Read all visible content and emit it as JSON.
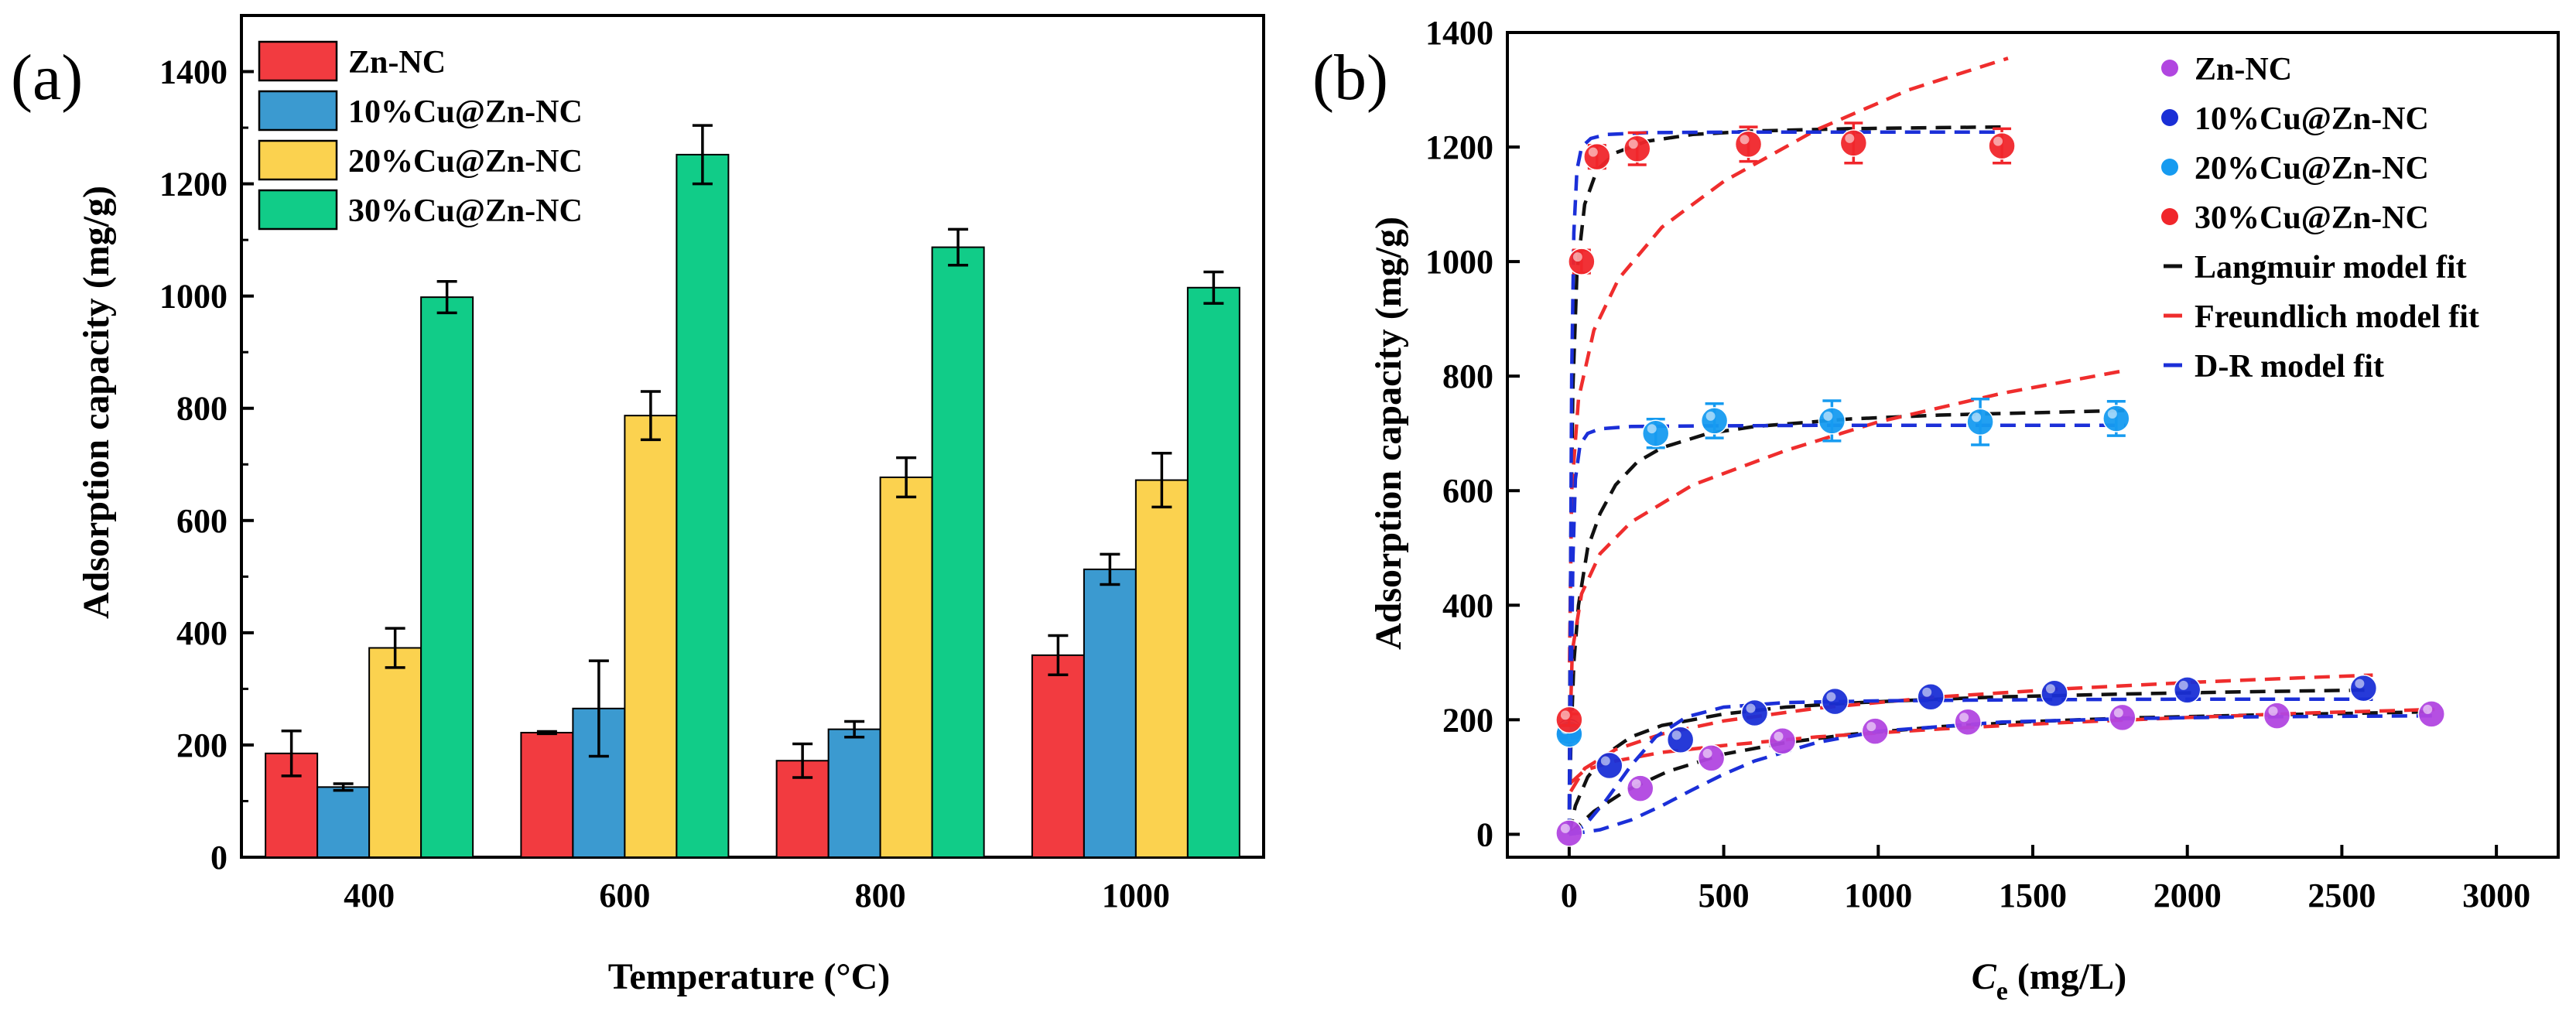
{
  "chart_data": [
    {
      "type": "bar",
      "panel_label": "(a)",
      "title": "",
      "xlabel": "Temperature  (°C)",
      "ylabel": "Adsorption capacity (mg/g)",
      "categories": [
        "400",
        "600",
        "800",
        "1000"
      ],
      "ylim": [
        0,
        1500
      ],
      "yticks": [
        "0",
        "200",
        "400",
        "600",
        "800",
        "1000",
        "1200",
        "1400"
      ],
      "legend_position": "top-left",
      "series": [
        {
          "name": "Zn-NC",
          "color": "#f23b40",
          "values": [
            185,
            222,
            172,
            360
          ],
          "errors": [
            40,
            2,
            30,
            35
          ]
        },
        {
          "name": "10%Cu@Zn-NC",
          "color": "#3b9ad0",
          "values": [
            125,
            265,
            228,
            513
          ],
          "errors": [
            6,
            85,
            14,
            27
          ]
        },
        {
          "name": "20%Cu@Zn-NC",
          "color": "#fbd24f",
          "values": [
            373,
            787,
            677,
            672
          ],
          "errors": [
            35,
            43,
            35,
            48
          ]
        },
        {
          "name": "30%Cu@Zn-NC",
          "color": "#11cc88",
          "values": [
            998,
            1252,
            1087,
            1015
          ],
          "errors": [
            28,
            52,
            32,
            28
          ]
        }
      ]
    },
    {
      "type": "scatter",
      "panel_label": "(b)",
      "title": "",
      "xlabel_main": "C",
      "xlabel_sub": "e",
      "xlabel_rest": " (mg/L)",
      "ylabel": "Adsorption capacity (mg/g)",
      "xlim": [
        -200,
        3200
      ],
      "ylim": [
        -40,
        1400
      ],
      "xticks": [
        "0",
        "500",
        "1000",
        "1500",
        "2000",
        "2500",
        "3000"
      ],
      "yticks": [
        "0",
        "200",
        "400",
        "600",
        "800",
        "1000",
        "1200",
        "1400"
      ],
      "legend_position": "top-right",
      "series": [
        {
          "name": "Zn-NC",
          "color": "#b146e0",
          "x": [
            0,
            230,
            460,
            690,
            990,
            1290,
            1790,
            2290,
            2790
          ],
          "y": [
            2,
            80,
            133,
            163,
            180,
            196,
            204,
            207,
            210
          ],
          "err": [
            0,
            0,
            0,
            0,
            0,
            0,
            0,
            0,
            0
          ]
        },
        {
          "name": "10%Cu@Zn-NC",
          "color": "#1a2fd6",
          "x": [
            0,
            130,
            360,
            600,
            860,
            1170,
            1570,
            2000,
            2570
          ],
          "y": [
            180,
            120,
            165,
            212,
            232,
            240,
            246,
            252,
            255
          ],
          "err": [
            0,
            0,
            0,
            0,
            0,
            0,
            0,
            0,
            0
          ]
        },
        {
          "name": "20%Cu@Zn-NC",
          "color": "#169bf0",
          "x": [
            0,
            280,
            470,
            850,
            1330,
            1770
          ],
          "y": [
            175,
            700,
            722,
            722,
            720,
            726
          ],
          "err": [
            12,
            25,
            30,
            35,
            40,
            30
          ]
        },
        {
          "name": "30%Cu@Zn-NC",
          "color": "#f0262b",
          "x": [
            0,
            40,
            90,
            220,
            580,
            920,
            1400
          ],
          "y": [
            200,
            1000,
            1183,
            1197,
            1205,
            1207,
            1202
          ],
          "err": [
            10,
            20,
            20,
            28,
            30,
            35,
            30
          ]
        }
      ],
      "fits": [
        {
          "name": "Langmuir model fit",
          "color": "#111111",
          "curves": [
            {
              "x": [
                0,
                80,
                180,
                320,
                500,
                700,
                900,
                1200,
                1500,
                1800,
                2200,
                2600,
                2800
              ],
              "y": [
                0,
                40,
                75,
                110,
                140,
                160,
                174,
                188,
                197,
                203,
                208,
                212,
                214
              ]
            },
            {
              "x": [
                0,
                20,
                60,
                120,
                200,
                300,
                500,
                700,
                900,
                1100,
                1400,
                1800,
                2200,
                2600
              ],
              "y": [
                0,
                50,
                100,
                140,
                170,
                190,
                210,
                222,
                229,
                234,
                240,
                245,
                249,
                252
              ]
            },
            {
              "x": [
                0,
                5,
                15,
                30,
                60,
                100,
                150,
                220,
                300,
                450,
                600,
                900,
                1200,
                1500,
                1800
              ],
              "y": [
                0,
                150,
                300,
                400,
                500,
                560,
                610,
                650,
                675,
                700,
                712,
                725,
                732,
                736,
                740
              ]
            },
            {
              "x": [
                0,
                2,
                6,
                12,
                25,
                50,
                90,
                150,
                250,
                400,
                600,
                900,
                1200,
                1400
              ],
              "y": [
                0,
                250,
                550,
                780,
                980,
                1100,
                1160,
                1190,
                1210,
                1222,
                1228,
                1232,
                1234,
                1235
              ]
            }
          ]
        },
        {
          "name": "Freundlich model fit",
          "color": "#ef2d2d",
          "curves": [
            {
              "x": [
                5,
                50,
                150,
                300,
                500,
                800,
                1200,
                1600,
                2000,
                2400,
                2800
              ],
              "y": [
                90,
                112,
                128,
                143,
                155,
                170,
                184,
                195,
                204,
                212,
                218
              ]
            },
            {
              "x": [
                5,
                50,
                150,
                300,
                500,
                800,
                1200,
                1600,
                2000,
                2400,
                2600
              ],
              "y": [
                75,
                115,
                148,
                175,
                198,
                220,
                240,
                254,
                265,
                274,
                278
              ]
            },
            {
              "x": [
                1,
                10,
                40,
                100,
                200,
                400,
                700,
                1000,
                1400,
                1800
              ],
              "y": [
                150,
                320,
                420,
                490,
                545,
                610,
                670,
                720,
                770,
                810
              ]
            },
            {
              "x": [
                1,
                8,
                30,
                80,
                160,
                300,
                500,
                800,
                1100,
                1420
              ],
              "y": [
                300,
                600,
                760,
                880,
                970,
                1060,
                1140,
                1230,
                1300,
                1355
              ]
            }
          ]
        },
        {
          "name": "D-R model fit",
          "color": "#1b2fd8",
          "curves": [
            {
              "x": [
                0,
                100,
                200,
                300,
                400,
                500,
                600,
                800,
                1000,
                1400,
                1800,
                2200,
                2800
              ],
              "y": [
                0,
                8,
                25,
                50,
                78,
                105,
                128,
                160,
                180,
                196,
                202,
                205,
                207
              ]
            },
            {
              "x": [
                0,
                50,
                120,
                200,
                280,
                380,
                500,
                700,
                1000,
                1500,
                2000,
                2600
              ],
              "y": [
                0,
                15,
                60,
                120,
                170,
                205,
                222,
                230,
                233,
                235,
                236,
                236
              ]
            },
            {
              "x": [
                0,
                5,
                12,
                20,
                35,
                60,
                100,
                200,
                400,
                800,
                1200,
                1800
              ],
              "y": [
                0,
                200,
                480,
                620,
                680,
                700,
                708,
                712,
                713,
                714,
                714,
                714
              ]
            },
            {
              "x": [
                0,
                3,
                8,
                15,
                25,
                40,
                70,
                120,
                250,
                500,
                900,
                1400
              ],
              "y": [
                0,
                300,
                800,
                1050,
                1160,
                1200,
                1215,
                1222,
                1225,
                1226,
                1226,
                1226
              ]
            }
          ]
        }
      ]
    }
  ]
}
